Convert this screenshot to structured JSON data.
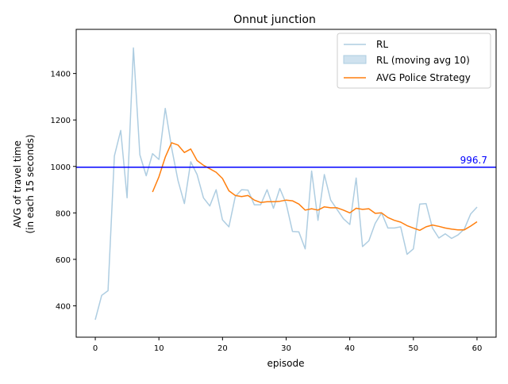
{
  "chart_data": {
    "type": "line",
    "title": "Onnut junction",
    "xlabel": "episode",
    "ylabel_line1": "AVG of travel time",
    "ylabel_line2": "(in each 15 seconds)",
    "xlim": [
      -3,
      63
    ],
    "ylim": [
      265,
      1590
    ],
    "x_ticks": [
      0,
      10,
      20,
      30,
      40,
      50,
      60
    ],
    "y_ticks": [
      400,
      600,
      800,
      1000,
      1200,
      1400
    ],
    "grid": false,
    "legend_position": "top-right",
    "series": [
      {
        "name": "RL",
        "color": "#aecde1",
        "x": [
          0,
          1,
          2,
          3,
          4,
          5,
          6,
          7,
          8,
          9,
          10,
          11,
          12,
          13,
          14,
          15,
          16,
          17,
          18,
          19,
          20,
          21,
          22,
          23,
          24,
          25,
          26,
          27,
          28,
          29,
          30,
          31,
          32,
          33,
          34,
          35,
          36,
          37,
          38,
          39,
          40,
          41,
          42,
          43,
          44,
          45,
          46,
          47,
          48,
          49,
          50,
          51,
          52,
          53,
          54,
          55,
          56,
          57,
          58,
          59,
          60
        ],
        "values": [
          340,
          445,
          465,
          1045,
          1155,
          865,
          1510,
          1050,
          960,
          1055,
          1030,
          1250,
          1080,
          940,
          840,
          1020,
          965,
          865,
          830,
          900,
          770,
          740,
          870,
          900,
          898,
          835,
          835,
          900,
          820,
          905,
          840,
          720,
          718,
          645,
          980,
          768,
          965,
          855,
          815,
          775,
          750,
          950,
          655,
          680,
          755,
          800,
          735,
          735,
          740,
          622,
          645,
          838,
          840,
          735,
          692,
          710,
          690,
          705,
          730,
          795,
          825
        ]
      },
      {
        "name": "RL (moving avg 10)",
        "color": "#aecde1",
        "legend_only": true
      },
      {
        "name": "AVG Police Strategy",
        "color": "#ff7f0e",
        "x": [
          9,
          10,
          11,
          12,
          13,
          14,
          15,
          16,
          17,
          18,
          19,
          20,
          21,
          22,
          23,
          24,
          25,
          26,
          27,
          28,
          29,
          30,
          31,
          32,
          33,
          34,
          35,
          36,
          37,
          38,
          39,
          40,
          41,
          42,
          43,
          44,
          45,
          46,
          47,
          48,
          49,
          50,
          51,
          52,
          53,
          54,
          55,
          56,
          57,
          58,
          59,
          60
        ],
        "values": [
          890,
          955,
          1040,
          1102,
          1092,
          1060,
          1075,
          1025,
          1005,
          990,
          975,
          948,
          895,
          875,
          870,
          875,
          855,
          845,
          848,
          848,
          850,
          855,
          852,
          838,
          812,
          818,
          812,
          826,
          822,
          822,
          812,
          800,
          820,
          815,
          818,
          798,
          800,
          780,
          768,
          760,
          745,
          735,
          725,
          740,
          748,
          742,
          735,
          730,
          727,
          727,
          743,
          762
        ]
      }
    ],
    "hline": {
      "value": 996.7,
      "label": "996.7",
      "color": "#0000ff"
    }
  }
}
